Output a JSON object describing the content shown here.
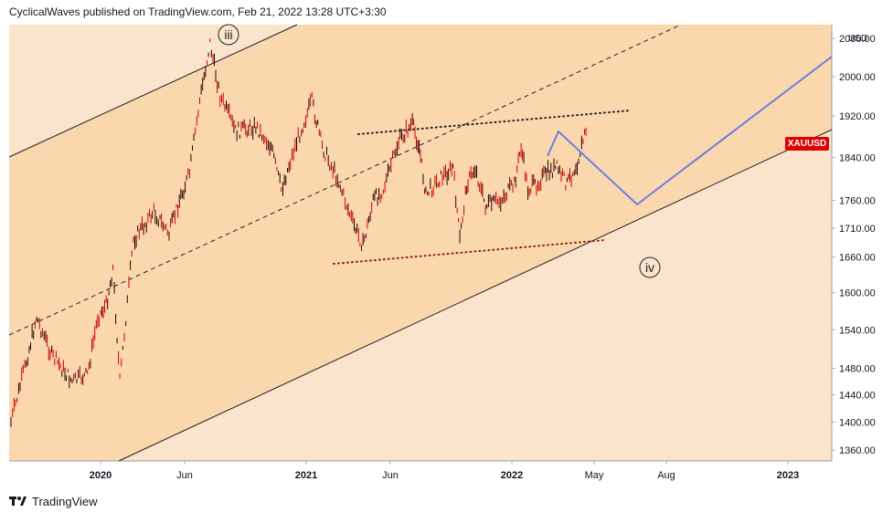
{
  "header": {
    "text": "CyclicalWaves published on TradingView.com, Feb 21, 2022 13:28 UTC+3:30"
  },
  "footer": {
    "brand": "TradingView",
    "logo_icon": "tradingview-logo-icon"
  },
  "colors": {
    "channel_fill": "#fbd7ae",
    "outside_fill": "#fae5cc",
    "candle": "#d00000",
    "projection": "#6b7fdc",
    "price_tag": "#e00000",
    "trendline": "#222222",
    "dotted_line": "#8b2500"
  },
  "chart_data": {
    "type": "candlestick",
    "symbol": "XAUUSD",
    "currency": "USD",
    "y_axis": {
      "scale": "log",
      "ticks": [
        1360,
        1400,
        1440,
        1480,
        1540,
        1600,
        1660,
        1710,
        1760,
        1840,
        1920,
        2000,
        2080
      ],
      "range": [
        1345,
        2110
      ]
    },
    "x_axis": {
      "ticks": [
        "2020",
        "Jun",
        "2021",
        "Jun",
        "2022",
        "May",
        "Aug",
        "2023"
      ]
    },
    "wave_labels": [
      "iii",
      "iv"
    ],
    "price_path": [
      {
        "date": "2019-10",
        "close": 1400
      },
      {
        "date": "2019-11",
        "close": 1490
      },
      {
        "date": "2019-11",
        "close": 1560
      },
      {
        "date": "2019-12",
        "close": 1500
      },
      {
        "date": "2020-01",
        "close": 1460
      },
      {
        "date": "2020-02",
        "close": 1470
      },
      {
        "date": "2020-02",
        "close": 1560
      },
      {
        "date": "2020-03",
        "close": 1580
      },
      {
        "date": "2020-03",
        "close": 1640
      },
      {
        "date": "2020-03",
        "close": 1460
      },
      {
        "date": "2020-04",
        "close": 1690
      },
      {
        "date": "2020-05",
        "close": 1740
      },
      {
        "date": "2020-06",
        "close": 1700
      },
      {
        "date": "2020-06",
        "close": 1760
      },
      {
        "date": "2020-07",
        "close": 1810
      },
      {
        "date": "2020-07",
        "close": 1950
      },
      {
        "date": "2020-08",
        "close": 2070
      },
      {
        "date": "2020-08",
        "close": 1960
      },
      {
        "date": "2020-09",
        "close": 1890
      },
      {
        "date": "2020-10",
        "close": 1900
      },
      {
        "date": "2020-11",
        "close": 1860
      },
      {
        "date": "2020-11",
        "close": 1780
      },
      {
        "date": "2020-12",
        "close": 1870
      },
      {
        "date": "2021-01",
        "close": 1950
      },
      {
        "date": "2021-01",
        "close": 1860
      },
      {
        "date": "2021-02",
        "close": 1800
      },
      {
        "date": "2021-03",
        "close": 1720
      },
      {
        "date": "2021-03",
        "close": 1680
      },
      {
        "date": "2021-04",
        "close": 1760
      },
      {
        "date": "2021-04",
        "close": 1780
      },
      {
        "date": "2021-05",
        "close": 1870
      },
      {
        "date": "2021-06",
        "close": 1905
      },
      {
        "date": "2021-06",
        "close": 1860
      },
      {
        "date": "2021-06",
        "close": 1770
      },
      {
        "date": "2021-07",
        "close": 1800
      },
      {
        "date": "2021-08",
        "close": 1820
      },
      {
        "date": "2021-08",
        "close": 1690
      },
      {
        "date": "2021-08",
        "close": 1790
      },
      {
        "date": "2021-09",
        "close": 1820
      },
      {
        "date": "2021-09",
        "close": 1750
      },
      {
        "date": "2021-10",
        "close": 1760
      },
      {
        "date": "2021-11",
        "close": 1790
      },
      {
        "date": "2021-11",
        "close": 1860
      },
      {
        "date": "2021-11",
        "close": 1780
      },
      {
        "date": "2021-12",
        "close": 1790
      },
      {
        "date": "2021-12",
        "close": 1810
      },
      {
        "date": "2022-01",
        "close": 1820
      },
      {
        "date": "2022-01",
        "close": 1790
      },
      {
        "date": "2022-02",
        "close": 1830
      },
      {
        "date": "2022-02",
        "close": 1905
      }
    ],
    "projection": [
      {
        "date": "2022-03",
        "value": 1850
      },
      {
        "date": "2022-03",
        "value": 1920
      },
      {
        "date": "2022-07",
        "value": 1770
      },
      {
        "date": "2023-02",
        "value": 2070
      }
    ],
    "annotations": {
      "upper_trendline": "parallel channel upper bound",
      "lower_trendline": "parallel channel lower bound",
      "midline": "dashed",
      "triangle_top": "dotted",
      "triangle_bottom": "dotted"
    }
  }
}
